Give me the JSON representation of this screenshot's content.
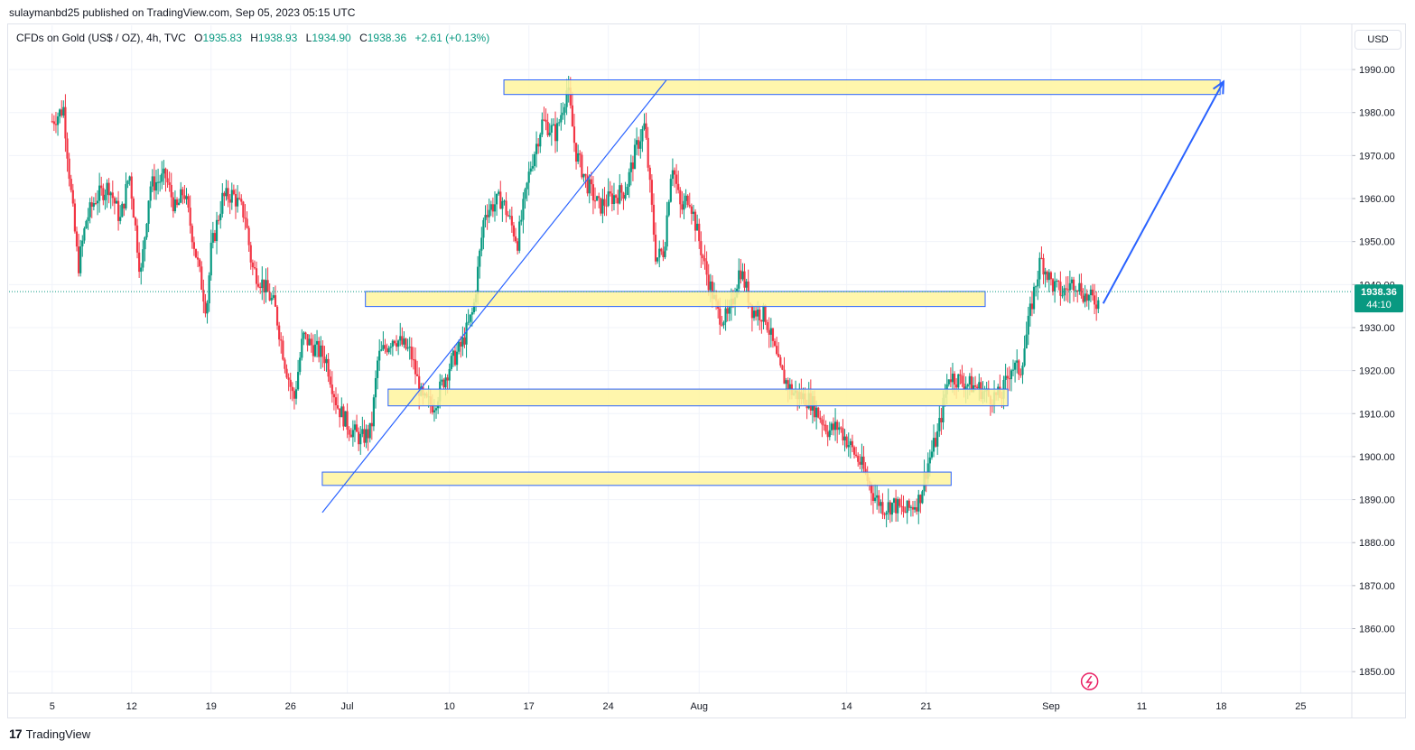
{
  "header": {
    "publisher": "sulaymanbd25 published on TradingView.com, Sep 05, 2023 05:15 UTC"
  },
  "legend": {
    "symbol": "CFDs on Gold (US$ / OZ), 4h, TVC",
    "open_label": "O",
    "open": "1935.83",
    "high_label": "H",
    "high": "1938.93",
    "low_label": "L",
    "low": "1934.90",
    "close_label": "C",
    "close": "1938.36",
    "change": "+2.61 (+0.13%)"
  },
  "currency_button": "USD",
  "last_price": {
    "price": "1938.36",
    "countdown": "44:10",
    "color": "#089981"
  },
  "colors": {
    "up": "#089981",
    "down": "#f23645",
    "zone_fill": "#fff59d",
    "zone_border": "#2962ff",
    "trendline": "#2962ff",
    "grid": "#f0f3fa"
  },
  "footer": {
    "logo_icon": "tradingview-logo-icon",
    "brand": "TradingView"
  },
  "chart_data": {
    "type": "candlestick",
    "timeframe": "4h",
    "y_ticks": [
      "1990.00",
      "1980.00",
      "1970.00",
      "1960.00",
      "1950.00",
      "1940.00",
      "1930.00",
      "1920.00",
      "1910.00",
      "1900.00",
      "1890.00",
      "1880.00",
      "1870.00",
      "1860.00",
      "1850.00"
    ],
    "ylim": [
      1845,
      1994
    ],
    "x_ticks": [
      "5",
      "12",
      "19",
      "26",
      "Jul",
      "10",
      "17",
      "24",
      "Aug",
      "14",
      "21",
      "Sep",
      "11",
      "18",
      "25"
    ],
    "x_ticks_day": [
      0,
      7,
      14,
      21,
      26,
      35,
      42,
      49,
      57,
      70,
      77,
      88,
      96,
      103,
      110
    ],
    "xlim_day": [
      -3.8,
      114.5
    ],
    "last_day": 92.2,
    "waypoints": [
      [
        0,
        1978
      ],
      [
        1,
        1981
      ],
      [
        1.6,
        1963
      ],
      [
        2.3,
        1944
      ],
      [
        3,
        1955
      ],
      [
        3.8,
        1960
      ],
      [
        5,
        1963
      ],
      [
        6,
        1955
      ],
      [
        6.8,
        1966
      ],
      [
        7.8,
        1942
      ],
      [
        8.6,
        1963
      ],
      [
        10,
        1965
      ],
      [
        10.9,
        1957
      ],
      [
        11.6,
        1962
      ],
      [
        12.6,
        1948
      ],
      [
        13.6,
        1934
      ],
      [
        14,
        1948
      ],
      [
        15,
        1960
      ],
      [
        15.9,
        1961
      ],
      [
        17,
        1956
      ],
      [
        17.6,
        1944
      ],
      [
        18.6,
        1940
      ],
      [
        19.6,
        1935
      ],
      [
        20.5,
        1922
      ],
      [
        21.3,
        1913
      ],
      [
        22.1,
        1928
      ],
      [
        22.8,
        1926
      ],
      [
        24.1,
        1923
      ],
      [
        25.1,
        1912
      ],
      [
        26.1,
        1907
      ],
      [
        27.2,
        1904
      ],
      [
        28.1,
        1906
      ],
      [
        28.7,
        1923
      ],
      [
        30.1,
        1928
      ],
      [
        31.6,
        1924
      ],
      [
        32.6,
        1913
      ],
      [
        33.6,
        1912
      ],
      [
        35,
        1921
      ],
      [
        36.1,
        1926
      ],
      [
        37.1,
        1934
      ],
      [
        38.1,
        1957
      ],
      [
        39.6,
        1960
      ],
      [
        41,
        1950
      ],
      [
        42.1,
        1967
      ],
      [
        43.2,
        1978
      ],
      [
        44.4,
        1975
      ],
      [
        45.4,
        1986
      ],
      [
        46.1,
        1971
      ],
      [
        47.2,
        1963
      ],
      [
        48.2,
        1958
      ],
      [
        49.1,
        1960
      ],
      [
        50.5,
        1962
      ],
      [
        51.5,
        1972
      ],
      [
        52.2,
        1977
      ],
      [
        53.2,
        1946
      ],
      [
        53.9,
        1948
      ],
      [
        54.6,
        1969
      ],
      [
        55.4,
        1957
      ],
      [
        56.1,
        1961
      ],
      [
        57.1,
        1949
      ],
      [
        57.6,
        1943
      ],
      [
        58.7,
        1933
      ],
      [
        59.6,
        1932
      ],
      [
        60.6,
        1944
      ],
      [
        61.7,
        1934
      ],
      [
        62.8,
        1933
      ],
      [
        64.1,
        1920
      ],
      [
        65.2,
        1915
      ],
      [
        66.8,
        1913
      ],
      [
        68.4,
        1906
      ],
      [
        69.3,
        1907
      ],
      [
        70.4,
        1902
      ],
      [
        71.3,
        1898
      ],
      [
        72.4,
        1891
      ],
      [
        73.3,
        1888
      ],
      [
        74.1,
        1889
      ],
      [
        75.1,
        1887
      ],
      [
        76.4,
        1890
      ],
      [
        77.1,
        1898
      ],
      [
        78,
        1905
      ],
      [
        79,
        1919
      ],
      [
        80.5,
        1917
      ],
      [
        81.6,
        1916
      ],
      [
        82.6,
        1914
      ],
      [
        83.6,
        1914
      ],
      [
        84.5,
        1921
      ],
      [
        85.3,
        1920
      ],
      [
        86.4,
        1937
      ],
      [
        87.1,
        1946
      ],
      [
        88.1,
        1940
      ],
      [
        89,
        1938
      ],
      [
        90.1,
        1941
      ],
      [
        91.1,
        1937
      ],
      [
        92.2,
        1936
      ]
    ],
    "zones": [
      {
        "start_day": 39.8,
        "end_day": 102.9,
        "low": 1984.2,
        "high": 1987.6
      },
      {
        "start_day": 27.6,
        "end_day": 82.2,
        "low": 1934.9,
        "high": 1938.4
      },
      {
        "start_day": 29.6,
        "end_day": 84.2,
        "low": 1911.8,
        "high": 1915.7
      },
      {
        "start_day": 23.8,
        "end_day": 79.2,
        "low": 1893.3,
        "high": 1896.4
      }
    ],
    "trendline": {
      "from": [
        23.8,
        1887.0
      ],
      "to": [
        54.1,
        1987.5
      ]
    },
    "projection": {
      "from": [
        92.6,
        1935.6
      ],
      "to": [
        103.2,
        1987.2
      ]
    },
    "last_price_line": 1938.36
  }
}
